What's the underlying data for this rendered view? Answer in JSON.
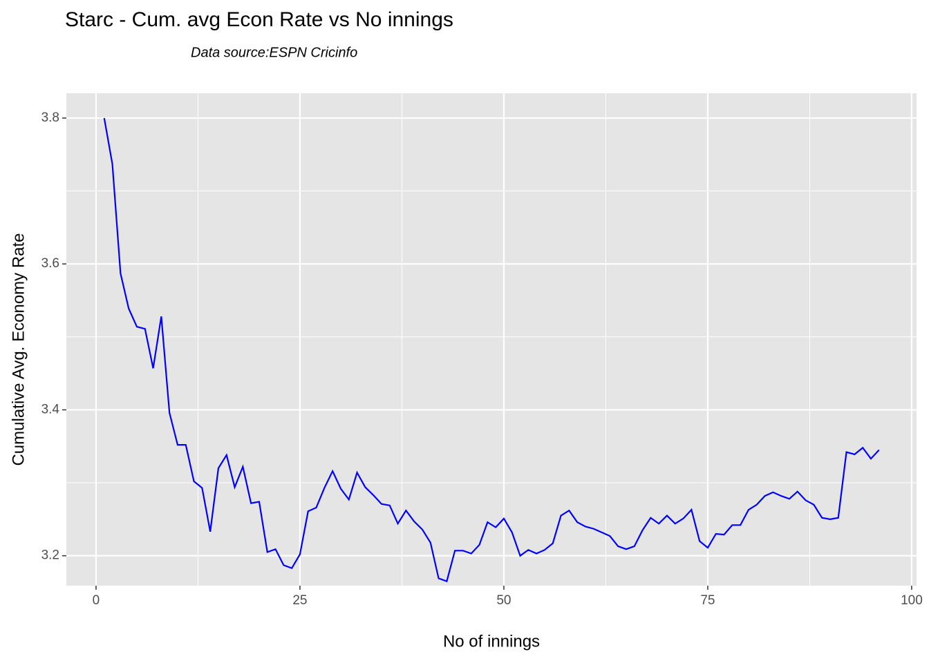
{
  "chart_data": {
    "type": "line",
    "title": "Starc - Cum. avg Econ Rate vs No innings",
    "subtitle": "Data source:ESPN Cricinfo",
    "x_label": "No of innings",
    "y_label": "Cumulative Avg. Economy Rate",
    "x": [
      1,
      2,
      3,
      4,
      5,
      6,
      7,
      8,
      9,
      10,
      11,
      12,
      13,
      14,
      15,
      16,
      17,
      18,
      19,
      20,
      21,
      22,
      23,
      24,
      25,
      26,
      27,
      28,
      29,
      30,
      31,
      32,
      33,
      34,
      35,
      36,
      37,
      38,
      39,
      40,
      41,
      42,
      43,
      44,
      45,
      46,
      47,
      48,
      49,
      50,
      51,
      52,
      53,
      54,
      55,
      56,
      57,
      58,
      59,
      60,
      61,
      62,
      63,
      64,
      65,
      66,
      67,
      68,
      69,
      70,
      71,
      72,
      73,
      74,
      75,
      76,
      77,
      78,
      79,
      80,
      81,
      82,
      83,
      84,
      85,
      86,
      87,
      88,
      89,
      90,
      91,
      92,
      93,
      94,
      95,
      96
    ],
    "series": [
      {
        "name": "Cumulative Avg. Economy Rate",
        "color": "#0000ff",
        "values": [
          3.8,
          3.737,
          3.587,
          3.539,
          3.514,
          3.511,
          3.457,
          3.528,
          3.396,
          3.352,
          3.352,
          3.302,
          3.293,
          3.233,
          3.32,
          3.338,
          3.294,
          3.322,
          3.272,
          3.274,
          3.205,
          3.209,
          3.187,
          3.183,
          3.202,
          3.261,
          3.266,
          3.293,
          3.316,
          3.292,
          3.277,
          3.314,
          3.294,
          3.283,
          3.271,
          3.269,
          3.244,
          3.262,
          3.247,
          3.236,
          3.218,
          3.169,
          3.165,
          3.207,
          3.207,
          3.203,
          3.215,
          3.246,
          3.239,
          3.251,
          3.232,
          3.2,
          3.208,
          3.203,
          3.208,
          3.217,
          3.255,
          3.262,
          3.246,
          3.24,
          3.237,
          3.232,
          3.227,
          3.213,
          3.209,
          3.213,
          3.235,
          3.252,
          3.244,
          3.255,
          3.244,
          3.251,
          3.263,
          3.22,
          3.211,
          3.23,
          3.229,
          3.242,
          3.242,
          3.263,
          3.27,
          3.282,
          3.287,
          3.282,
          3.278,
          3.288,
          3.276,
          3.27,
          3.252,
          3.25,
          3.252,
          3.342,
          3.339,
          3.348,
          3.333,
          3.345
        ]
      }
    ],
    "xlim": [
      -3.64,
      100.6
    ],
    "ylim": [
      3.159,
      3.834
    ],
    "xticks": [
      0,
      25,
      50,
      75,
      100
    ],
    "yticks": [
      3.2,
      3.4,
      3.6,
      3.8
    ],
    "grid": true
  }
}
